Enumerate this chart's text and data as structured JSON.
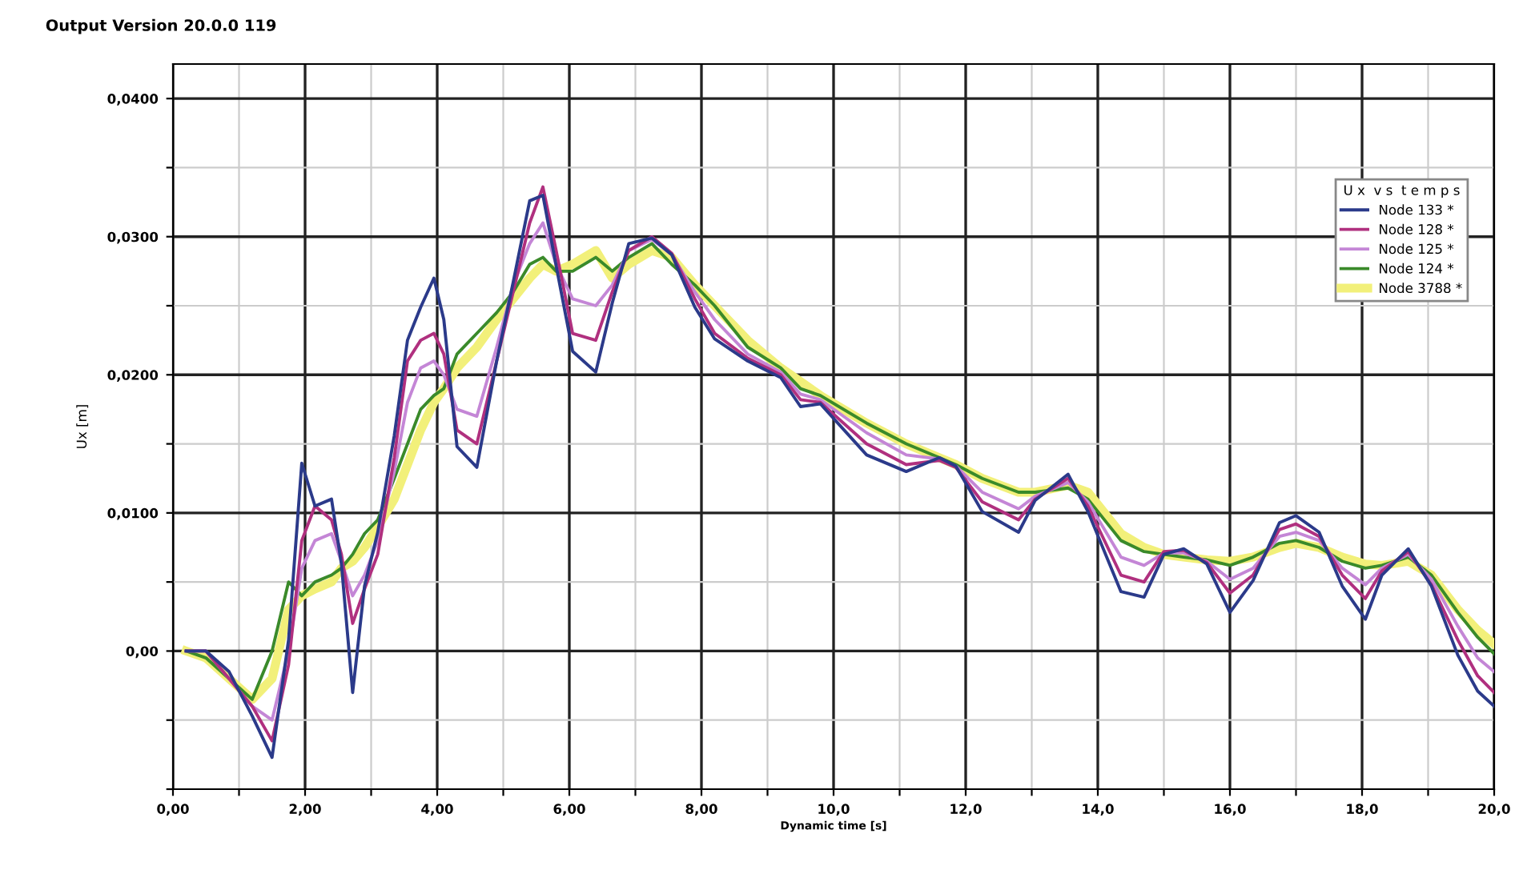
{
  "chart_data": {
    "type": "line",
    "title": "Output Version 20.0.0 119",
    "xlabel": "Dynamic time [s]",
    "ylabel": "Ux [m]",
    "legend_title": "U x  v s  t e m p s",
    "x": [
      0.2,
      0.5,
      0.85,
      1.2,
      1.5,
      1.75,
      1.95,
      2.15,
      2.4,
      2.55,
      2.72,
      2.9,
      3.1,
      3.35,
      3.55,
      3.75,
      3.95,
      4.1,
      4.3,
      4.6,
      4.9,
      5.15,
      5.4,
      5.6,
      5.8,
      6.05,
      6.4,
      6.65,
      6.9,
      7.25,
      7.55,
      7.9,
      8.2,
      8.7,
      9.2,
      9.5,
      9.8,
      10.5,
      11.1,
      11.6,
      11.85,
      12.25,
      12.8,
      13.05,
      13.55,
      13.85,
      14.35,
      14.7,
      15.0,
      15.3,
      15.65,
      16.0,
      16.35,
      16.75,
      17.0,
      17.35,
      17.7,
      18.05,
      18.3,
      18.7,
      19.05,
      19.45,
      19.75,
      20.0
    ],
    "series": [
      {
        "name": "Node 133 *",
        "color": "#2b3a8a",
        "values": [
          0,
          0,
          -0.0015,
          -0.0047,
          -0.0077,
          0.0008,
          0.0136,
          0.0105,
          0.011,
          0.0063,
          -0.003,
          0.0047,
          0.0086,
          0.0156,
          0.0225,
          0.0249,
          0.027,
          0.024,
          0.0148,
          0.0133,
          0.021,
          0.0267,
          0.0326,
          0.033,
          0.0279,
          0.0217,
          0.0202,
          0.0252,
          0.0295,
          0.0299,
          0.0287,
          0.0249,
          0.0226,
          0.021,
          0.0198,
          0.0177,
          0.0179,
          0.0142,
          0.013,
          0.014,
          0.0134,
          0.0101,
          0.0086,
          0.0109,
          0.0128,
          0.0101,
          0.0043,
          0.0039,
          0.007,
          0.0074,
          0.0063,
          0.0028,
          0.0051,
          0.0093,
          0.0098,
          0.0086,
          0.0047,
          0.0023,
          0.0055,
          0.0074,
          0.0047,
          -0.0003,
          -0.0029,
          -0.004
        ]
      },
      {
        "name": "Node 128 *",
        "color": "#b0307f",
        "values": [
          0,
          0,
          -0.002,
          -0.004,
          -0.0065,
          -0.001,
          0.008,
          0.0105,
          0.0095,
          0.007,
          0.002,
          0.0045,
          0.007,
          0.014,
          0.021,
          0.0225,
          0.023,
          0.0215,
          0.016,
          0.015,
          0.021,
          0.026,
          0.031,
          0.0336,
          0.029,
          0.023,
          0.0225,
          0.026,
          0.029,
          0.03,
          0.0288,
          0.0255,
          0.023,
          0.0212,
          0.02,
          0.0182,
          0.018,
          0.015,
          0.0135,
          0.0138,
          0.0133,
          0.0108,
          0.0095,
          0.011,
          0.0125,
          0.0105,
          0.0055,
          0.005,
          0.0072,
          0.0073,
          0.0064,
          0.0042,
          0.0055,
          0.0088,
          0.0092,
          0.0083,
          0.0055,
          0.0038,
          0.0058,
          0.0072,
          0.0048,
          0.0008,
          -0.0018,
          -0.003
        ]
      },
      {
        "name": "Node 125 *",
        "color": "#c486d6",
        "values": [
          0,
          0,
          -0.002,
          -0.004,
          -0.005,
          0.0,
          0.006,
          0.008,
          0.0085,
          0.0065,
          0.004,
          0.0055,
          0.008,
          0.013,
          0.018,
          0.0205,
          0.021,
          0.02,
          0.0175,
          0.017,
          0.022,
          0.0265,
          0.0295,
          0.031,
          0.028,
          0.0255,
          0.025,
          0.0265,
          0.029,
          0.0298,
          0.0287,
          0.026,
          0.024,
          0.0215,
          0.0202,
          0.0186,
          0.0182,
          0.0158,
          0.0142,
          0.0139,
          0.0134,
          0.0115,
          0.0103,
          0.0112,
          0.0122,
          0.0108,
          0.0068,
          0.0062,
          0.0071,
          0.0071,
          0.0065,
          0.0052,
          0.006,
          0.0083,
          0.0086,
          0.008,
          0.006,
          0.0048,
          0.006,
          0.007,
          0.0052,
          0.0018,
          -0.0005,
          -0.0015
        ]
      },
      {
        "name": "Node 124 *",
        "color": "#3a8a2a",
        "values": [
          0,
          -0.0005,
          -0.002,
          -0.0035,
          0.0,
          0.005,
          0.004,
          0.005,
          0.0055,
          0.006,
          0.007,
          0.0085,
          0.0095,
          0.0125,
          0.015,
          0.0175,
          0.0185,
          0.019,
          0.0215,
          0.023,
          0.0245,
          0.026,
          0.028,
          0.0285,
          0.0275,
          0.0275,
          0.0285,
          0.0275,
          0.0285,
          0.0295,
          0.028,
          0.0265,
          0.025,
          0.022,
          0.0205,
          0.019,
          0.0185,
          0.0165,
          0.015,
          0.014,
          0.0135,
          0.0125,
          0.0115,
          0.0115,
          0.0118,
          0.011,
          0.008,
          0.0072,
          0.007,
          0.0068,
          0.0066,
          0.0062,
          0.0068,
          0.0078,
          0.008,
          0.0075,
          0.0065,
          0.006,
          0.0062,
          0.0068,
          0.0055,
          0.0028,
          0.001,
          -0.0002
        ]
      },
      {
        "name": "Node 3788 *",
        "color": "#f2f07a",
        "values": [
          0,
          -0.0005,
          -0.002,
          -0.0035,
          -0.002,
          0.003,
          0.004,
          0.0045,
          0.005,
          0.006,
          0.0065,
          0.0075,
          0.009,
          0.011,
          0.0135,
          0.016,
          0.018,
          0.019,
          0.0205,
          0.022,
          0.024,
          0.0255,
          0.027,
          0.028,
          0.0275,
          0.028,
          0.029,
          0.027,
          0.028,
          0.029,
          0.0285,
          0.0265,
          0.025,
          0.0225,
          0.0205,
          0.0195,
          0.0185,
          0.0165,
          0.015,
          0.014,
          0.0135,
          0.0125,
          0.0115,
          0.0115,
          0.012,
          0.0115,
          0.0085,
          0.0075,
          0.007,
          0.0068,
          0.0066,
          0.0065,
          0.0068,
          0.0075,
          0.0078,
          0.0075,
          0.0068,
          0.0063,
          0.0062,
          0.0065,
          0.0055,
          0.003,
          0.0015,
          0.0005
        ]
      }
    ],
    "xlim": [
      0,
      20
    ],
    "ylim": [
      -0.01,
      0.0425
    ],
    "xticks": [
      {
        "value": 0,
        "label": "0,00"
      },
      {
        "value": 1,
        "label": null
      },
      {
        "value": 2,
        "label": "2,00"
      },
      {
        "value": 3,
        "label": null
      },
      {
        "value": 4,
        "label": "4,00"
      },
      {
        "value": 5,
        "label": null
      },
      {
        "value": 6,
        "label": "6,00"
      },
      {
        "value": 7,
        "label": null
      },
      {
        "value": 8,
        "label": "8,00"
      },
      {
        "value": 9,
        "label": null
      },
      {
        "value": 10,
        "label": "10,0"
      },
      {
        "value": 11,
        "label": null
      },
      {
        "value": 12,
        "label": "12,0"
      },
      {
        "value": 13,
        "label": null
      },
      {
        "value": 14,
        "label": "14,0"
      },
      {
        "value": 15,
        "label": null
      },
      {
        "value": 16,
        "label": "16,0"
      },
      {
        "value": 17,
        "label": null
      },
      {
        "value": 18,
        "label": "18,0"
      },
      {
        "value": 19,
        "label": null
      },
      {
        "value": 20,
        "label": "20,0"
      }
    ],
    "yticks": [
      {
        "value": -0.01,
        "label": null
      },
      {
        "value": -0.005,
        "label": null
      },
      {
        "value": 0,
        "label": "0,00"
      },
      {
        "value": 0.005,
        "label": null
      },
      {
        "value": 0.01,
        "label": "0,0100"
      },
      {
        "value": 0.015,
        "label": null
      },
      {
        "value": 0.02,
        "label": "0,0200"
      },
      {
        "value": 0.025,
        "label": null
      },
      {
        "value": 0.03,
        "label": "0,0300"
      },
      {
        "value": 0.035,
        "label": null
      },
      {
        "value": 0.04,
        "label": "0,0400"
      }
    ],
    "grid": true,
    "legend": "top right",
    "marker": "none",
    "line_style": "solid"
  }
}
